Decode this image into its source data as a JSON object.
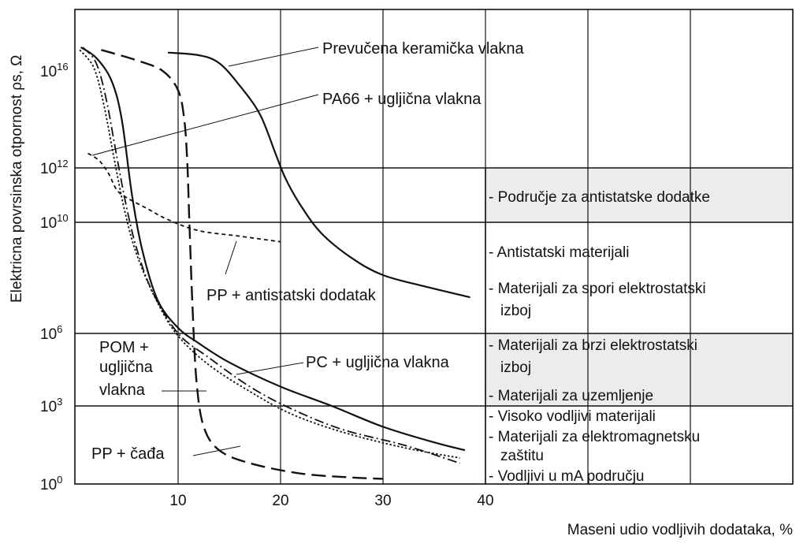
{
  "chart_data": {
    "type": "line",
    "title": "",
    "xlabel": "Maseni udio vodljivih dodataka, %",
    "ylabel": "Elektricna povrsinska otpornost ρs, Ω",
    "xlim": [
      0,
      70
    ],
    "x_ticks": [
      {
        "value": 10,
        "label": "10"
      },
      {
        "value": 20,
        "label": "20"
      },
      {
        "value": 30,
        "label": "30"
      },
      {
        "value": 40,
        "label": "40"
      }
    ],
    "y_scale": "log-like",
    "y_ticks": [
      {
        "value": 0,
        "base": "10",
        "exp": "0"
      },
      {
        "value": 3,
        "base": "10",
        "exp": "3"
      },
      {
        "value": 6,
        "base": "10",
        "exp": "6"
      },
      {
        "value": 10,
        "base": "10",
        "exp": "10"
      },
      {
        "value": 12,
        "base": "10",
        "exp": "12"
      },
      {
        "value": 16,
        "base": "10",
        "exp": "16"
      }
    ],
    "series": [
      {
        "name": "Prevučena keramička vlakna",
        "style": "solid",
        "points": [
          [
            9,
            16.7
          ],
          [
            12,
            16.6
          ],
          [
            14,
            16.3
          ],
          [
            16,
            15.4
          ],
          [
            18,
            14.2
          ],
          [
            19.5,
            12.6
          ],
          [
            20.5,
            11.6
          ],
          [
            22,
            10.6
          ],
          [
            24,
            9.6
          ],
          [
            27,
            8.7
          ],
          [
            30,
            8.1
          ],
          [
            34,
            7.7
          ],
          [
            38.5,
            7.3
          ]
        ]
      },
      {
        "name": "PA66 + ugljična vlakna",
        "style": "long-dash",
        "points": [
          [
            2.5,
            16.8
          ],
          [
            6,
            16.4
          ],
          [
            8.5,
            16.0
          ],
          [
            10,
            15.2
          ],
          [
            10.6,
            14.0
          ],
          [
            10.9,
            12.2
          ],
          [
            11.1,
            10.0
          ],
          [
            11.4,
            7.0
          ],
          [
            11.8,
            4.0
          ],
          [
            12.5,
            2.2
          ],
          [
            14,
            1.3
          ],
          [
            17,
            0.8
          ],
          [
            22,
            0.4
          ],
          [
            27,
            0.25
          ],
          [
            30,
            0.2
          ]
        ]
      },
      {
        "name": "PP + antistatski dodatak",
        "style": "short-dash",
        "points": [
          [
            1.2,
            12.6
          ],
          [
            2.3,
            12.3
          ],
          [
            3.2,
            11.8
          ],
          [
            4,
            11.2
          ],
          [
            5,
            10.9
          ],
          [
            7,
            10.5
          ],
          [
            9,
            10.1
          ],
          [
            12,
            9.7
          ],
          [
            16,
            9.5
          ],
          [
            20,
            9.3
          ]
        ]
      },
      {
        "name": "PC + ugljična vlakna",
        "style": "solid",
        "points": [
          [
            0.5,
            16.9
          ],
          [
            2,
            16.5
          ],
          [
            3.5,
            15.6
          ],
          [
            4.5,
            14.0
          ],
          [
            5.5,
            11.0
          ],
          [
            6.5,
            9.0
          ],
          [
            8,
            7.2
          ],
          [
            10,
            6.2
          ],
          [
            12,
            5.6
          ],
          [
            15,
            4.8
          ],
          [
            20,
            3.8
          ],
          [
            25,
            3.0
          ],
          [
            30,
            2.2
          ],
          [
            35,
            1.6
          ],
          [
            38,
            1.3
          ]
        ]
      },
      {
        "name": "POM + ugljična vlakna",
        "style": "dash-dot",
        "points": [
          [
            0.7,
            16.9
          ],
          [
            2,
            16.3
          ],
          [
            3,
            14.8
          ],
          [
            4,
            12.5
          ],
          [
            5,
            10.5
          ],
          [
            6,
            9.0
          ],
          [
            7.5,
            7.5
          ],
          [
            10,
            6.0
          ],
          [
            13,
            5.0
          ],
          [
            17,
            3.8
          ],
          [
            21,
            2.9
          ],
          [
            26,
            2.1
          ],
          [
            32,
            1.5
          ],
          [
            37.5,
            0.8
          ]
        ]
      },
      {
        "name": "PP + čađa",
        "style": "dotted",
        "points": [
          [
            0.4,
            16.8
          ],
          [
            1.8,
            16.1
          ],
          [
            2.8,
            14.5
          ],
          [
            3.7,
            12.5
          ],
          [
            4.8,
            10.4
          ],
          [
            6,
            8.8
          ],
          [
            8,
            7.1
          ],
          [
            10,
            5.9
          ],
          [
            13,
            4.7
          ],
          [
            17,
            3.6
          ],
          [
            21,
            2.7
          ],
          [
            26,
            2.0
          ],
          [
            32,
            1.4
          ],
          [
            37.5,
            1.0
          ]
        ]
      }
    ],
    "annotations": [
      {
        "text": "Prevučena keramička vlakna"
      },
      {
        "text": "PA66 + ugljična vlakna"
      },
      {
        "text": "PP + antistatski dodatak"
      },
      {
        "text": "PC + ugljična vlakna"
      },
      {
        "text": "POM +"
      },
      {
        "text": "ugljična"
      },
      {
        "text": "vlakna"
      },
      {
        "text": "PP + čađa"
      }
    ],
    "zones": [
      {
        "ymin": 10,
        "ymax": 12,
        "shaded": true,
        "labels": [
          "- Područje za antistatske dodatke"
        ]
      },
      {
        "ymin": 6,
        "ymax": 10,
        "shaded": false,
        "labels": [
          "- Antistatski materijali",
          "- Materijali za spori elektrostatski",
          "izboj"
        ]
      },
      {
        "ymin": 3,
        "ymax": 6,
        "shaded": true,
        "labels": [
          "- Materijali za brzi elektrostatski",
          "izboj",
          "- Materijali za uzemljenje"
        ]
      },
      {
        "ymin": 0,
        "ymax": 3,
        "shaded": false,
        "labels": [
          "- Visoko vodljivi materijali",
          "- Materijali za elektromagnetsku",
          "zaštitu",
          "- Vodljivi u mA području"
        ]
      }
    ]
  }
}
